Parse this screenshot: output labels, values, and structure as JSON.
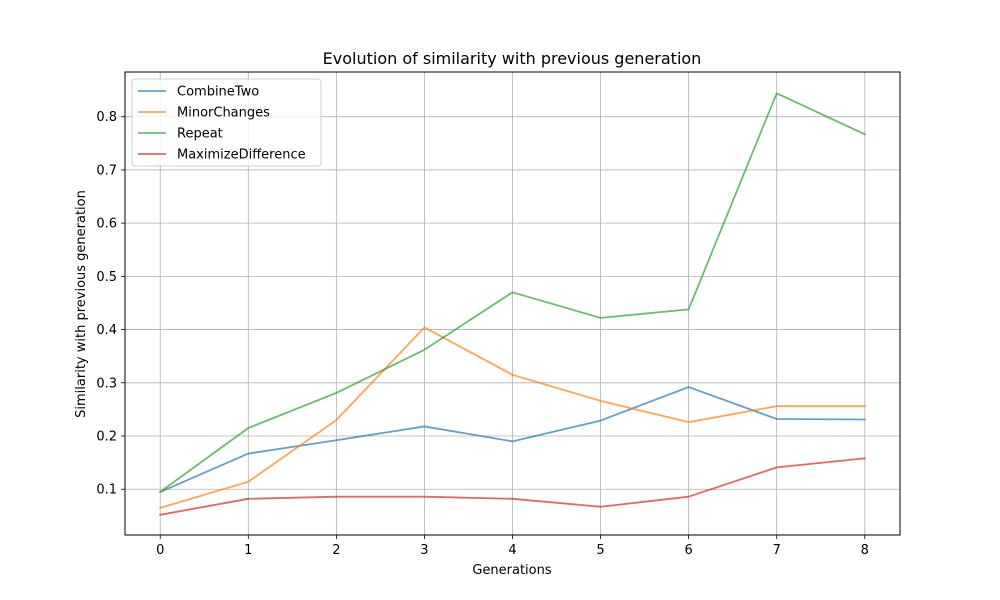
{
  "chart_data": {
    "type": "line",
    "title": "Evolution of similarity with previous generation",
    "xlabel": "Generations",
    "ylabel": "Similarity with previous generation",
    "x": [
      0,
      1,
      2,
      3,
      4,
      5,
      6,
      7,
      8
    ],
    "xticks": [
      "0",
      "1",
      "2",
      "3",
      "4",
      "5",
      "6",
      "7",
      "8"
    ],
    "yticks": [
      "0.1",
      "0.2",
      "0.3",
      "0.4",
      "0.5",
      "0.6",
      "0.7",
      "0.8"
    ],
    "xlim": [
      -0.4,
      8.4
    ],
    "ylim": [
      0.014,
      0.884
    ],
    "grid": true,
    "legend_position": "top-left",
    "series": [
      {
        "name": "CombineTwo",
        "color": "#1f77b4",
        "values": [
          0.095,
          0.167,
          0.192,
          0.218,
          0.19,
          0.229,
          0.292,
          0.232,
          0.231
        ]
      },
      {
        "name": "MinorChanges",
        "color": "#ff7f0e",
        "values": [
          0.065,
          0.114,
          0.23,
          0.404,
          0.315,
          0.266,
          0.226,
          0.256,
          0.256
        ]
      },
      {
        "name": "Repeat",
        "color": "#2ca02c",
        "values": [
          0.095,
          0.215,
          0.281,
          0.362,
          0.47,
          0.422,
          0.438,
          0.844,
          0.767
        ]
      },
      {
        "name": "MaximizeDifference",
        "color": "#d62728",
        "values": [
          0.052,
          0.082,
          0.086,
          0.086,
          0.082,
          0.067,
          0.086,
          0.141,
          0.158
        ]
      }
    ]
  }
}
